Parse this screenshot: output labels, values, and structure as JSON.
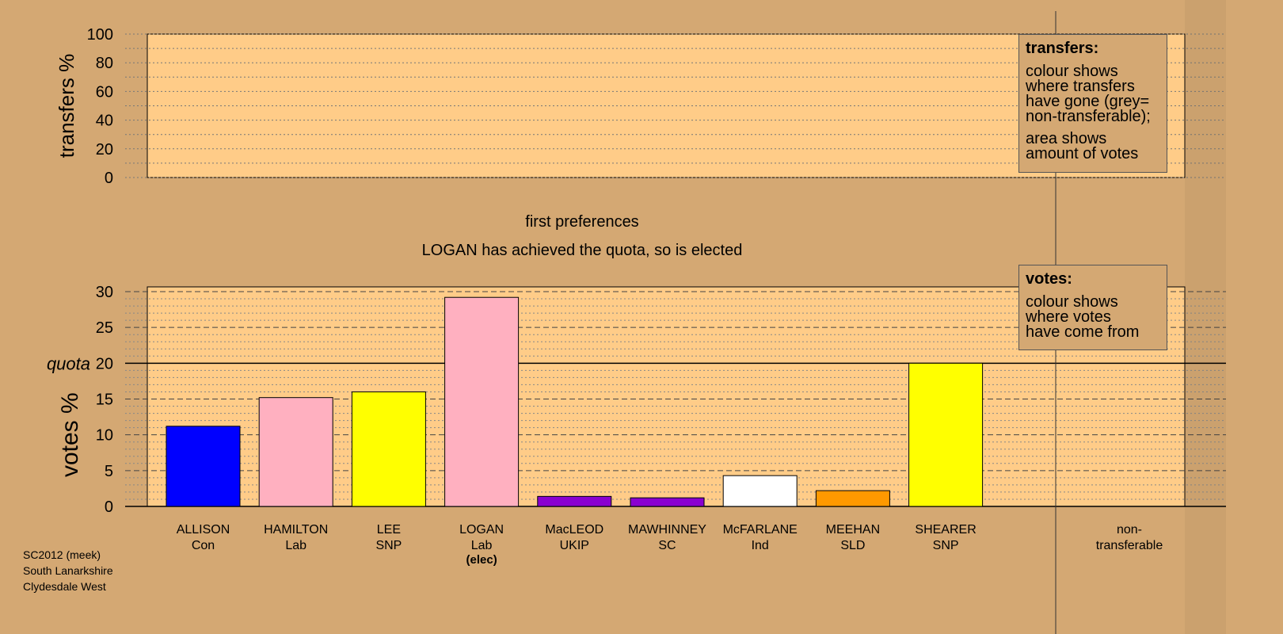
{
  "chart_data": {
    "type": "bar",
    "title": "first preferences",
    "subtitle": "LOGAN has achieved the quota, so is elected",
    "ylabel": "votes %",
    "top_ylabel": "transfers %",
    "quota_label": "quota",
    "quota": 20,
    "ylim": [
      0,
      30
    ],
    "yticks": [
      "0",
      "5",
      "10",
      "15",
      "20",
      "25",
      "30"
    ],
    "top_ylim": [
      0,
      100
    ],
    "top_yticks": [
      "0",
      "20",
      "40",
      "60",
      "80",
      "100"
    ],
    "candidates": [
      {
        "name": "ALLISON",
        "party": "Con",
        "value": 11.2,
        "color": "#0000ff"
      },
      {
        "name": "HAMILTON",
        "party": "Lab",
        "value": 15.2,
        "color": "#ffb0c0"
      },
      {
        "name": "LEE",
        "party": "SNP",
        "value": 16.0,
        "color": "#ffff00"
      },
      {
        "name": "LOGAN",
        "party": "Lab",
        "value": 29.2,
        "color": "#ffb0c0",
        "status": "(elec)"
      },
      {
        "name": "MacLEOD",
        "party": "UKIP",
        "value": 1.4,
        "color": "#8a00d0"
      },
      {
        "name": "MAWHINNEY",
        "party": "SC",
        "value": 1.2,
        "color": "#8a00d0"
      },
      {
        "name": "McFARLANE",
        "party": "Ind",
        "value": 4.3,
        "color": "#ffffff"
      },
      {
        "name": "MEEHAN",
        "party": "SLD",
        "value": 2.2,
        "color": "#ff9900"
      },
      {
        "name": "SHEARER",
        "party": "SNP",
        "value": 20.0,
        "color": "#ffff00"
      }
    ],
    "nontransferable_label": [
      "non-",
      "transferable"
    ],
    "grid": true
  },
  "legend_transfers": {
    "title": "transfers:",
    "lines1": [
      "colour shows",
      "where transfers",
      "have gone (grey=",
      "non-transferable);"
    ],
    "lines2": [
      "area shows",
      "amount of votes"
    ]
  },
  "legend_votes": {
    "title": "votes:",
    "lines": [
      "colour shows",
      "where votes",
      "have come from"
    ]
  },
  "footer": {
    "line1": "SC2012 (meek)",
    "line2": "South Lanarkshire",
    "line3": "Clydesdale West"
  },
  "colors": {
    "background": "#d4a873",
    "plot_background": "#ffcc88"
  }
}
